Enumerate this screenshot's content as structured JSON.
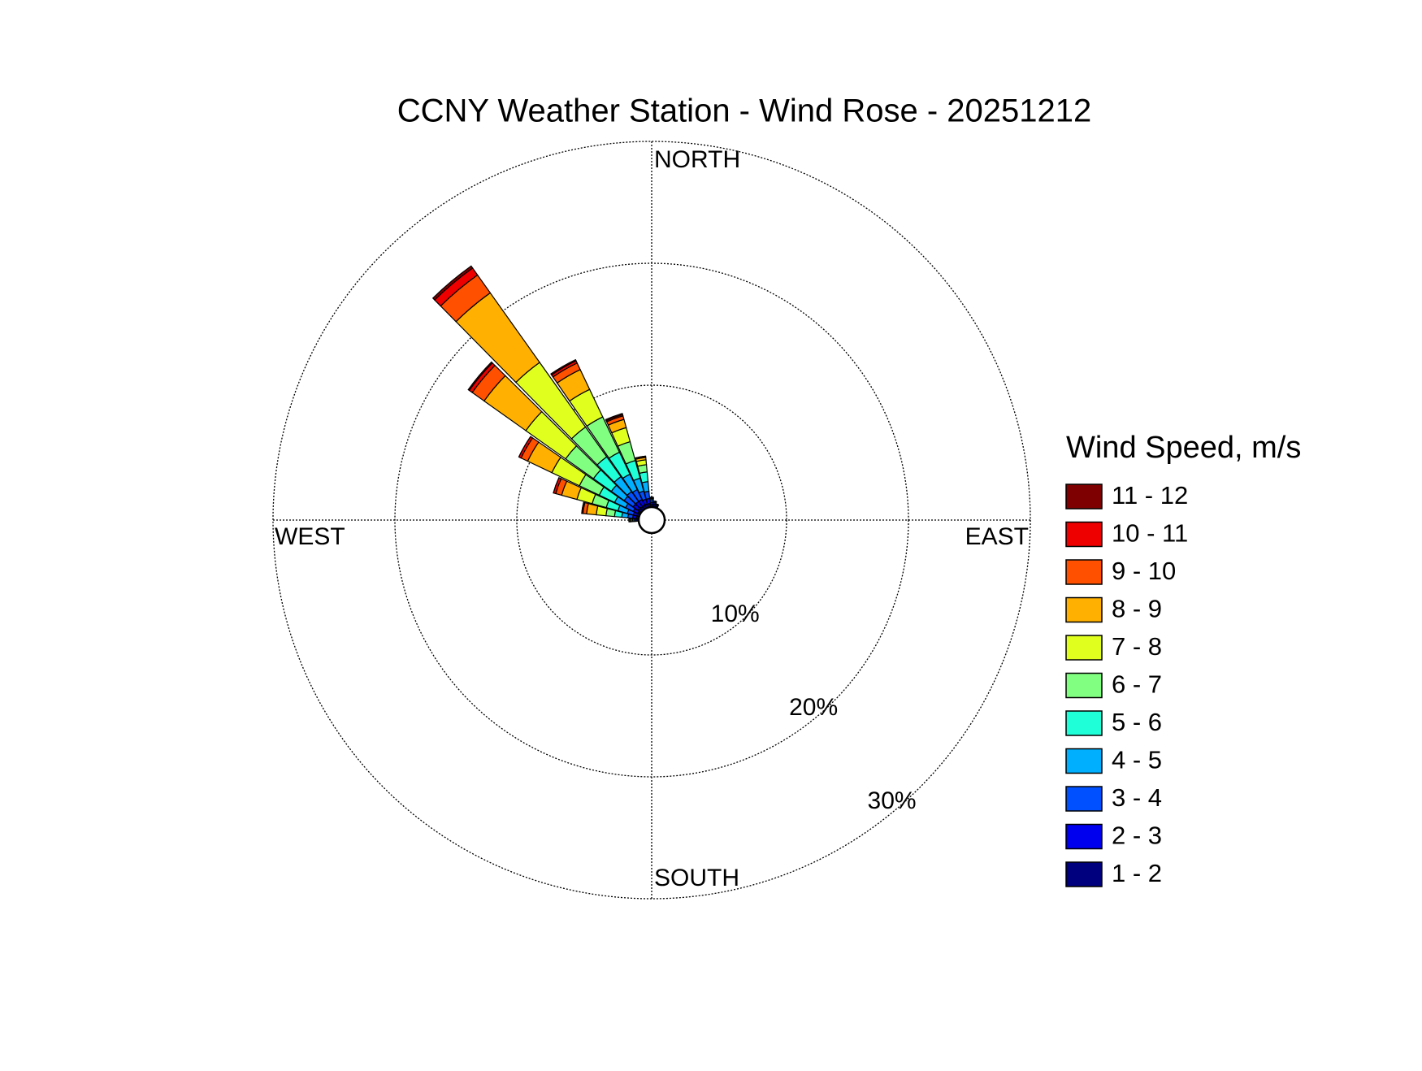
{
  "chart_data": {
    "type": "wind_rose",
    "title": "CCNY Weather Station - Wind Rose - 20251212",
    "legend_title": "Wind Speed, m/s",
    "directions": [
      270,
      280,
      290,
      300,
      310,
      320,
      330,
      340,
      350,
      0,
      10,
      20
    ],
    "rlim": [
      0,
      30
    ],
    "rticks": [
      {
        "value": 10,
        "label": "10%"
      },
      {
        "value": 20,
        "label": "20%"
      },
      {
        "value": 30,
        "label": "30%"
      }
    ],
    "angular_ticks": [
      {
        "value": 0,
        "label": "NORTH"
      },
      {
        "value": 90,
        "label": "EAST"
      },
      {
        "value": 180,
        "label": "SOUTH"
      },
      {
        "value": 270,
        "label": "WEST"
      }
    ],
    "grid": true,
    "legend": "right",
    "series": [
      {
        "name": "1 - 2",
        "color": "#00007f",
        "values": [
          0.1,
          0.2,
          0.2,
          0.2,
          0.3,
          0.3,
          0.3,
          0.3,
          0.3,
          0.2,
          0.2,
          0.1
        ]
      },
      {
        "name": "2 - 3",
        "color": "#0000ee",
        "values": [
          0.1,
          0.3,
          0.3,
          0.4,
          0.5,
          0.5,
          0.5,
          0.4,
          0.4,
          0.2,
          0.1,
          0.1
        ]
      },
      {
        "name": "3 - 4",
        "color": "#0050ff",
        "values": [
          0.1,
          0.4,
          0.5,
          0.7,
          0.9,
          1.0,
          0.9,
          0.7,
          0.6,
          0.2,
          0.1,
          0.1
        ]
      },
      {
        "name": "4 - 5",
        "color": "#00b0ff",
        "values": [
          0.1,
          0.5,
          0.8,
          1.0,
          1.3,
          1.5,
          1.4,
          1.1,
          0.8,
          0.1,
          0.1,
          0
        ]
      },
      {
        "name": "5 - 6",
        "color": "#1fffd8",
        "values": [
          0.1,
          0.6,
          1.0,
          1.4,
          1.8,
          2.0,
          2.0,
          1.5,
          0.8,
          0.1,
          0,
          0
        ]
      },
      {
        "name": "6 - 7",
        "color": "#80ff80",
        "values": [
          0.1,
          0.7,
          1.2,
          1.8,
          2.8,
          3.0,
          3.2,
          1.6,
          0.6,
          0,
          0,
          0
        ]
      },
      {
        "name": "7 - 8",
        "color": "#e0ff1f",
        "values": [
          0.1,
          0.8,
          1.3,
          2.5,
          4.0,
          6.5,
          2.5,
          1.2,
          0.4,
          0,
          0,
          0
        ]
      },
      {
        "name": "8 - 9",
        "color": "#ffb000",
        "values": [
          0.1,
          0.8,
          1.3,
          2.2,
          4.2,
          7.0,
          1.8,
          0.7,
          0.2,
          0,
          0,
          0
        ]
      },
      {
        "name": "9 - 10",
        "color": "#ff5000",
        "values": [
          0,
          0.3,
          0.5,
          0.6,
          1.2,
          1.8,
          0.6,
          0.3,
          0.1,
          0,
          0,
          0
        ]
      },
      {
        "name": "10 - 11",
        "color": "#ee0000",
        "values": [
          0,
          0.1,
          0.2,
          0.2,
          0.3,
          0.7,
          0.2,
          0.1,
          0,
          0,
          0,
          0
        ]
      },
      {
        "name": "11 - 12",
        "color": "#7f0000",
        "values": [
          0,
          0,
          0,
          0,
          0.1,
          0.2,
          0.1,
          0.1,
          0,
          0,
          0,
          0
        ]
      }
    ]
  }
}
